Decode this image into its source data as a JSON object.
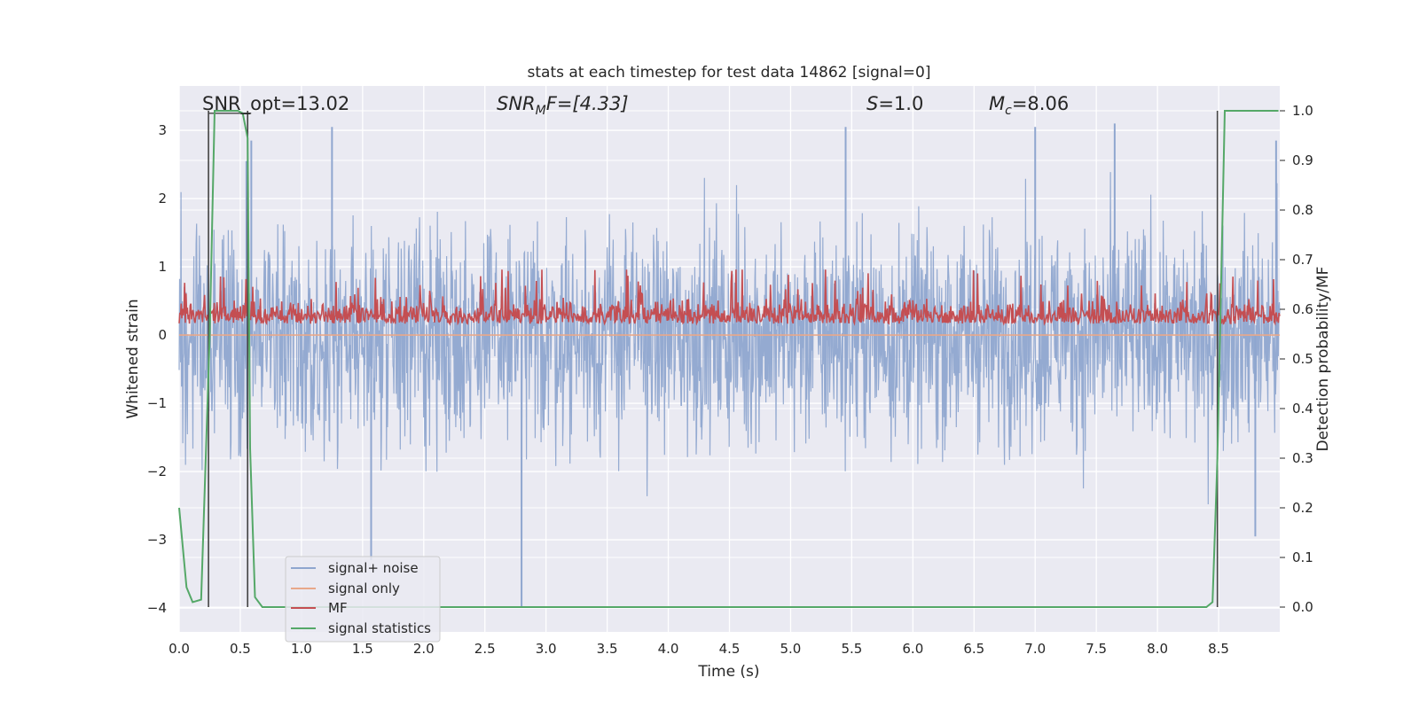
{
  "chart_data": {
    "type": "line",
    "title": "stats at each timestep for test data 14862 [signal=0]",
    "xlabel": "Time (s)",
    "ylabel_left": "Whitened strain",
    "ylabel_right": "Detection probability/MF",
    "xlim": [
      0.0,
      9.0
    ],
    "ylim_left": [
      -4.35,
      3.65
    ],
    "ylim_right": [
      -0.05,
      1.05
    ],
    "x_ticks": [
      "0.0",
      "0.5",
      "1.0",
      "1.5",
      "2.0",
      "2.5",
      "3.0",
      "3.5",
      "4.0",
      "4.5",
      "5.0",
      "5.5",
      "6.0",
      "6.5",
      "7.0",
      "7.5",
      "8.0",
      "8.5"
    ],
    "y_ticks_left": [
      "3",
      "2",
      "1",
      "0",
      "−1",
      "−2",
      "−3",
      "−4"
    ],
    "y_ticks_right": [
      "1.0",
      "0.9",
      "0.8",
      "0.7",
      "0.6",
      "0.5",
      "0.4",
      "0.3",
      "0.2",
      "0.1",
      "0.0"
    ],
    "grid": true,
    "legend_position": "lower-left",
    "annotations": {
      "snr_opt": "SNR_opt=13.02",
      "snr_mf_label": "SNR",
      "snr_mf_sub": "M",
      "snr_mf_rest": "F=[4.33]",
      "s_label": "S",
      "s_value": "=1.0",
      "mc_label": "M",
      "mc_sub": "c",
      "mc_value": "=8.06"
    },
    "series": [
      {
        "name": "signal+ noise",
        "color": "#8fa6cf",
        "axis": "left",
        "description": "noise band, amplitude approx ±2.5 with spikes to 3.1 and -4.0"
      },
      {
        "name": "signal only",
        "color": "#e8a88a",
        "axis": "left",
        "values_constant": 0.0
      },
      {
        "name": "MF",
        "color": "#c44e52",
        "axis": "right",
        "band": [
          0.545,
          0.68
        ]
      },
      {
        "name": "signal statistics",
        "color": "#55a868",
        "axis": "right",
        "x": [
          0.0,
          0.06,
          0.11,
          0.18,
          0.25,
          0.29,
          0.33,
          0.4,
          0.48,
          0.52,
          0.56,
          0.58,
          0.62,
          0.68,
          1.0,
          8.4,
          8.45,
          8.49,
          8.55,
          8.62,
          8.8,
          8.99
        ],
        "y": [
          0.2,
          0.04,
          0.01,
          0.015,
          0.55,
          1.0,
          1.0,
          1.0,
          1.0,
          0.995,
          0.945,
          0.32,
          0.02,
          0.0,
          0.0,
          0.0,
          0.01,
          0.3,
          1.0,
          1.0,
          1.0,
          1.0
        ]
      }
    ],
    "vertical_markers": [
      0.24,
      0.56,
      8.49
    ],
    "marker_color": "#444444"
  }
}
